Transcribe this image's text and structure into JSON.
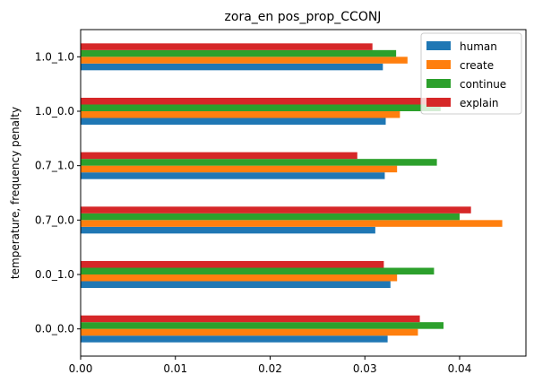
{
  "chart_data": {
    "type": "bar",
    "orientation": "horizontal",
    "title": "zora_en pos_prop_CCONJ",
    "xlabel": "",
    "ylabel": "temperature, frequency penalty",
    "categories": [
      "0.0_0.0",
      "0.0_1.0",
      "0.7_0.0",
      "0.7_1.0",
      "1.0_0.0",
      "1.0_1.0"
    ],
    "xlim": [
      0.0,
      0.047
    ],
    "xticks": [
      "0.00",
      "0.01",
      "0.02",
      "0.03",
      "0.04"
    ],
    "legend_position": "top-right",
    "grid": false,
    "series": [
      {
        "name": "human",
        "color": "#1f77b4",
        "values": [
          0.0324,
          0.0327,
          0.0311,
          0.0321,
          0.0322,
          0.0319
        ]
      },
      {
        "name": "create",
        "color": "#ff7f0e",
        "values": [
          0.0356,
          0.0334,
          0.0445,
          0.0334,
          0.0337,
          0.0345
        ]
      },
      {
        "name": "continue",
        "color": "#2ca02c",
        "values": [
          0.0383,
          0.0373,
          0.04,
          0.0376,
          0.038,
          0.0333
        ]
      },
      {
        "name": "explain",
        "color": "#d62728",
        "values": [
          0.0358,
          0.032,
          0.0412,
          0.0292,
          0.0376,
          0.0308
        ]
      }
    ]
  }
}
